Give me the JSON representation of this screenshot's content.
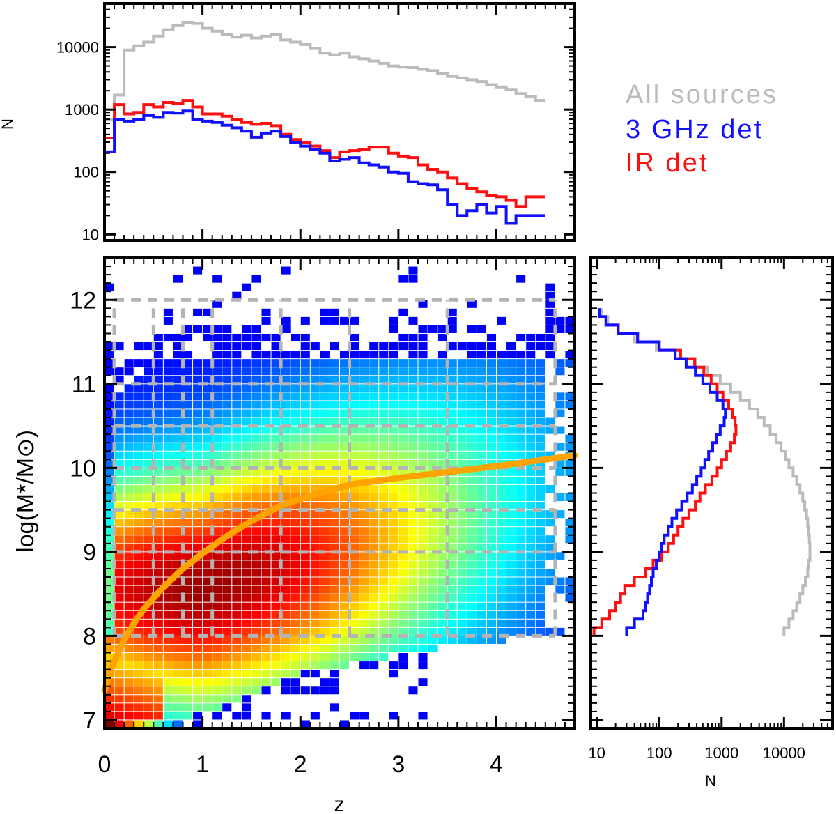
{
  "chart_data": [
    {
      "panel": "top-histogram",
      "type": "line",
      "style": "step",
      "title": "",
      "xlabel": "",
      "ylabel": "N",
      "xlim": [
        0,
        4.8
      ],
      "ylim": [
        8,
        50000
      ],
      "yscale": "log",
      "yticks": [
        "10",
        "100",
        "1000",
        "10000"
      ],
      "x": [
        0.0,
        0.1,
        0.2,
        0.3,
        0.4,
        0.5,
        0.6,
        0.7,
        0.8,
        0.9,
        1.0,
        1.1,
        1.2,
        1.3,
        1.4,
        1.5,
        1.6,
        1.7,
        1.8,
        1.9,
        2.0,
        2.1,
        2.2,
        2.3,
        2.4,
        2.5,
        2.6,
        2.7,
        2.8,
        2.9,
        3.0,
        3.1,
        3.2,
        3.3,
        3.4,
        3.5,
        3.6,
        3.7,
        3.8,
        3.9,
        4.0,
        4.1,
        4.2,
        4.3,
        4.4
      ],
      "series": [
        {
          "name": "All sources",
          "color": "#bbbbbb",
          "values": [
            700,
            1700,
            9000,
            10500,
            12000,
            15000,
            19000,
            22000,
            25000,
            24000,
            20000,
            18000,
            16000,
            14500,
            15500,
            14000,
            15000,
            16000,
            13000,
            12000,
            11000,
            9500,
            8000,
            7500,
            8000,
            7000,
            6500,
            6000,
            5500,
            5000,
            4800,
            4700,
            4400,
            4200,
            3800,
            3400,
            3200,
            3000,
            2800,
            2500,
            2300,
            2100,
            1800,
            1600,
            1400
          ]
        },
        {
          "name": "IR det",
          "color": "#ff1010",
          "values": [
            350,
            1200,
            850,
            900,
            1200,
            1100,
            1300,
            1250,
            1400,
            1100,
            850,
            850,
            780,
            700,
            620,
            580,
            600,
            550,
            400,
            330,
            300,
            260,
            220,
            170,
            210,
            220,
            230,
            250,
            250,
            200,
            180,
            170,
            130,
            110,
            100,
            80,
            65,
            55,
            48,
            42,
            40,
            35,
            28,
            40,
            40
          ]
        },
        {
          "name": "3 GHz det",
          "color": "#1010ff",
          "values": [
            210,
            700,
            650,
            700,
            800,
            750,
            900,
            880,
            950,
            700,
            650,
            620,
            560,
            510,
            450,
            360,
            420,
            450,
            370,
            300,
            260,
            230,
            200,
            150,
            160,
            170,
            140,
            130,
            120,
            100,
            95,
            70,
            65,
            62,
            52,
            30,
            20,
            24,
            30,
            22,
            28,
            15,
            20,
            20,
            20
          ]
        }
      ]
    },
    {
      "panel": "main-density",
      "type": "heatmap",
      "title": "",
      "xlabel": "z",
      "ylabel": "log(M*/M⊙)",
      "xlim": [
        0,
        4.8
      ],
      "ylim": [
        6.9,
        12.5
      ],
      "xticks": [
        "0",
        "1",
        "2",
        "3",
        "4"
      ],
      "yticks": [
        "7",
        "8",
        "9",
        "10",
        "11",
        "12"
      ],
      "colormap": "jet",
      "density_peak": {
        "z": 1.0,
        "logM": 8.5
      },
      "grid_z_edges": [
        0.1,
        0.5,
        0.8,
        1.1,
        1.8,
        2.5,
        3.5,
        4.6
      ],
      "grid_mass_edges": [
        8.0,
        9.0,
        9.5,
        10.0,
        10.5,
        11.0,
        12.0
      ],
      "mass_limit_curve": {
        "color": "#ffa300",
        "z": [
          0.0,
          0.05,
          0.1,
          0.2,
          0.3,
          0.4,
          0.5,
          0.6,
          0.8,
          1.0,
          1.2,
          1.4,
          1.6,
          1.8,
          2.0,
          2.2,
          2.5,
          3.0,
          3.5,
          4.0,
          4.5,
          4.8
        ],
        "logM": [
          7.35,
          7.55,
          7.7,
          7.95,
          8.15,
          8.32,
          8.45,
          8.58,
          8.8,
          8.98,
          9.15,
          9.3,
          9.43,
          9.55,
          9.63,
          9.7,
          9.8,
          9.88,
          9.95,
          10.02,
          10.1,
          10.15
        ]
      }
    },
    {
      "panel": "right-histogram",
      "type": "line",
      "style": "step",
      "title": "",
      "xlabel": "N",
      "ylabel": "",
      "xscale": "log",
      "xlim": [
        8,
        60000
      ],
      "ylim": [
        6.9,
        12.5
      ],
      "xticks": [
        "10",
        "100",
        "1000",
        "10000"
      ],
      "mass_bins": [
        8.0,
        8.1,
        8.2,
        8.3,
        8.4,
        8.5,
        8.6,
        8.7,
        8.8,
        8.9,
        9.0,
        9.1,
        9.2,
        9.3,
        9.4,
        9.5,
        9.6,
        9.7,
        9.8,
        9.9,
        10.0,
        10.1,
        10.2,
        10.3,
        10.4,
        10.5,
        10.6,
        10.7,
        10.8,
        10.9,
        11.0,
        11.1,
        11.2,
        11.3,
        11.4,
        11.5,
        11.6,
        11.7,
        11.8
      ],
      "series": [
        {
          "name": "All sources",
          "color": "#bbbbbb",
          "values": [
            10000,
            12000,
            14000,
            16000,
            18000,
            20000,
            22000,
            24000,
            25000,
            26000,
            26000,
            25500,
            25000,
            24000,
            23000,
            21500,
            20000,
            18000,
            16000,
            14000,
            12000,
            10500,
            9000,
            7500,
            6000,
            4800,
            3800,
            2800,
            2000,
            1400,
            950,
            600,
            380,
            180,
            90,
            40,
            22,
            15,
            12
          ]
        },
        {
          "name": "IR det",
          "color": "#ff1010",
          "values": [
            9,
            12,
            16,
            20,
            24,
            28,
            40,
            60,
            80,
            110,
            140,
            170,
            200,
            240,
            300,
            380,
            450,
            550,
            700,
            850,
            1000,
            1200,
            1400,
            1600,
            1700,
            1650,
            1500,
            1300,
            1050,
            850,
            680,
            520,
            370,
            220,
            100,
            45,
            22,
            14,
            11
          ]
        },
        {
          "name": "3 GHz det",
          "color": "#1010ff",
          "values": [
            30,
            40,
            55,
            60,
            65,
            70,
            75,
            80,
            90,
            100,
            110,
            120,
            140,
            160,
            190,
            230,
            280,
            340,
            400,
            470,
            540,
            620,
            720,
            830,
            950,
            1100,
            1150,
            1050,
            850,
            650,
            500,
            380,
            270,
            180,
            100,
            45,
            22,
            14,
            11
          ]
        }
      ]
    }
  ],
  "legend": [
    {
      "label": "All sources",
      "color": "#bbbbbb"
    },
    {
      "label": "3 GHz det",
      "color": "#1010ff"
    },
    {
      "label": "IR det",
      "color": "#ff1010"
    }
  ]
}
